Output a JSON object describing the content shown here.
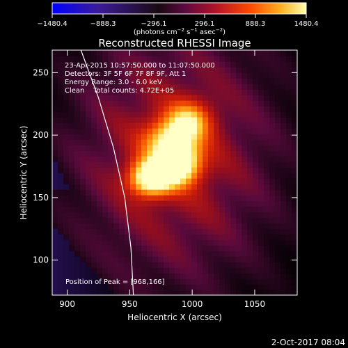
{
  "colorbar": {
    "ticks": [
      -1480.4,
      -888.3,
      -296.1,
      296.1,
      888.3,
      1480.4
    ],
    "tick_labels": [
      "−1480.4",
      "−888.3",
      "−296.1",
      "296.1",
      "888.3",
      "1480.4"
    ],
    "units_prefix": "(photons cm",
    "units_sup1": "−2",
    "units_mid1": " s",
    "units_sup2": "−1",
    "units_mid2": " asec",
    "units_sup3": "−2",
    "units_suffix": ")",
    "range": [
      -1480.4,
      1480.4
    ],
    "colors": [
      "#0000ff",
      "#3a1c9a",
      "#1a0a10",
      "#7a1a5a",
      "#c41c2a",
      "#ff5a00",
      "#ffaa20",
      "#ffffa0"
    ]
  },
  "chart_data": {
    "type": "heatmap",
    "title": "Reconstructed RHESSI Image",
    "xlabel": "Heliocentric X (arcsec)",
    "ylabel": "Heliocentric Y (arcsec)",
    "xlim": [
      888,
      1084
    ],
    "ylim": [
      72,
      268
    ],
    "x_ticks": [
      900,
      950,
      1000,
      1050
    ],
    "y_ticks": [
      100,
      150,
      200,
      250
    ],
    "info_lines": [
      "23-Apr-2015 10:57:50.000 to 11:07:50.000",
      "Detectors: 3F 5F 6F 7F 8F 9F, Att 1",
      "Energy Range: 3.0 - 6.0 keV",
      "Clean    Total counts: 4.72E+05"
    ],
    "peak_label": "Position of Peak = [968,166]",
    "peak": [
      968,
      166
    ],
    "sources": [
      {
        "x": 967,
        "y": 166,
        "amp": 1480,
        "sx": 12,
        "sy": 10
      },
      {
        "x": 990,
        "y": 177,
        "amp": 1300,
        "sx": 12,
        "sy": 11
      },
      {
        "x": 982,
        "y": 196,
        "amp": 1000,
        "sx": 14,
        "sy": 12
      },
      {
        "x": 998,
        "y": 212,
        "amp": 780,
        "sx": 12,
        "sy": 11
      }
    ],
    "limb": [
      [
        911,
        268
      ],
      [
        925,
        230
      ],
      [
        937,
        190
      ],
      [
        946,
        150
      ],
      [
        951,
        110
      ],
      [
        953,
        72
      ]
    ]
  },
  "footer": {
    "date": "2-Oct-2017 08:04"
  }
}
